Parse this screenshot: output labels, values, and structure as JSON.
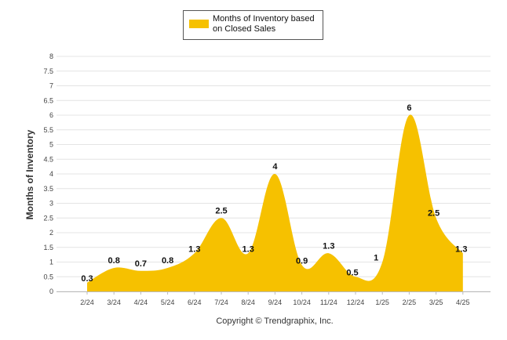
{
  "chart_data": {
    "type": "area",
    "categories": [
      "2/24",
      "3/24",
      "4/24",
      "5/24",
      "6/24",
      "7/24",
      "8/24",
      "9/24",
      "10/24",
      "11/24",
      "12/24",
      "1/25",
      "2/25",
      "3/25",
      "4/25"
    ],
    "series": [
      {
        "name": "Months of Inventory based on Closed Sales",
        "values": [
          0.3,
          0.8,
          0.7,
          0.8,
          1.3,
          2.5,
          1.3,
          4,
          0.9,
          1.3,
          0.5,
          1,
          6,
          2.5,
          1.3
        ],
        "labels": [
          "0.3",
          "0.8",
          "0.7",
          "0.8",
          "1.3",
          "2.5",
          "1.3",
          "4",
          "0.9",
          "1.3",
          "0.5",
          "1",
          "6",
          "2.5",
          "1.3"
        ],
        "color": "#f6c100"
      }
    ],
    "ylabel": "Months of Inventory",
    "ylim": [
      0,
      8
    ],
    "yticks": [
      "0",
      "0.5",
      "1",
      "1.5",
      "2",
      "2.5",
      "3",
      "3.5",
      "4",
      "4.5",
      "5",
      "5.5",
      "6",
      "6.5",
      "7",
      "7.5",
      "8"
    ],
    "grid": true,
    "legend_position": "top-center",
    "legend_lines": [
      "Months of Inventory based",
      "on Closed Sales"
    ]
  },
  "footer": {
    "copyright": "Copyright © Trendgraphix, Inc."
  }
}
